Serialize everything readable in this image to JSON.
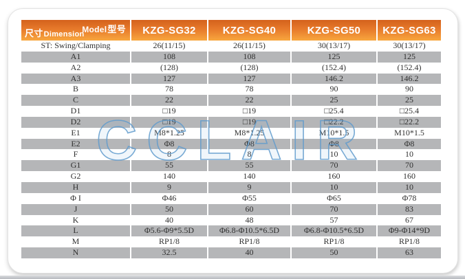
{
  "page": {
    "watermark": "CCLAIR"
  },
  "colors": {
    "header_gradient_top": "#d4611c",
    "header_gradient_bottom": "#f8a73e",
    "row_shade_gray": "#b5b6b8",
    "watermark_blue": "#609bcc",
    "text_dark": "#303030",
    "bottom_band_gray": "#b6b9be"
  },
  "table": {
    "corner": {
      "model_en": "Model",
      "model_cn": "型号",
      "dimension_cn": "尺寸",
      "dimension_en": "Dimension"
    },
    "columns": [
      "KZG-SG32",
      "KZG-SG40",
      "KZG-SG50",
      "KZG-SG63"
    ],
    "rows": [
      {
        "label": "ST: Swing/Clamping",
        "values": [
          "26(11/15)",
          "26(11/15)",
          "30(13/17)",
          "30(13/17)"
        ]
      },
      {
        "label": "A1",
        "values": [
          "108",
          "108",
          "125",
          "125"
        ]
      },
      {
        "label": "A2",
        "values": [
          "(128)",
          "(128)",
          "(152.4)",
          "(152.4)"
        ]
      },
      {
        "label": "A3",
        "values": [
          "127",
          "127",
          "146.2",
          "146.2"
        ]
      },
      {
        "label": "B",
        "values": [
          "78",
          "78",
          "90",
          "90"
        ]
      },
      {
        "label": "C",
        "values": [
          "22",
          "22",
          "25",
          "25"
        ]
      },
      {
        "label": "D1",
        "values": [
          "□19",
          "□19",
          "□25.4",
          "□25.4"
        ]
      },
      {
        "label": "D2",
        "values": [
          "□19",
          "□19",
          "□22.2",
          "□22.2"
        ]
      },
      {
        "label": "E1",
        "values": [
          "M8*1.25",
          "M8*1.25",
          "M10*1.5",
          "M10*1.5"
        ]
      },
      {
        "label": "E2",
        "values": [
          "Φ8",
          "Φ8",
          "Φ8",
          "Φ8"
        ]
      },
      {
        "label": "F",
        "values": [
          "8",
          "8",
          "10",
          "10"
        ]
      },
      {
        "label": "G1",
        "values": [
          "55",
          "55",
          "70",
          "70"
        ]
      },
      {
        "label": "G2",
        "values": [
          "140",
          "140",
          "160",
          "160"
        ]
      },
      {
        "label": "H",
        "values": [
          "9",
          "9",
          "10",
          "10"
        ]
      },
      {
        "label": "Φ I",
        "values": [
          "Φ46",
          "Φ55",
          "Φ65",
          "Φ78"
        ]
      },
      {
        "label": "J",
        "values": [
          "50",
          "60",
          "70",
          "83"
        ]
      },
      {
        "label": "K",
        "values": [
          "40",
          "48",
          "57",
          "67"
        ]
      },
      {
        "label": "L",
        "values": [
          "Φ5.6-Φ9*5.5D",
          "Φ6.8-Φ10.5*6.5D",
          "Φ6.8-Φ10.5*6.5D",
          "Φ9-Φ14*9D"
        ]
      },
      {
        "label": "M",
        "values": [
          "RP1/8",
          "RP1/8",
          "RP1/8",
          "RP1/8"
        ]
      },
      {
        "label": "N",
        "values": [
          "32.5",
          "40",
          "50",
          "63"
        ]
      }
    ]
  }
}
